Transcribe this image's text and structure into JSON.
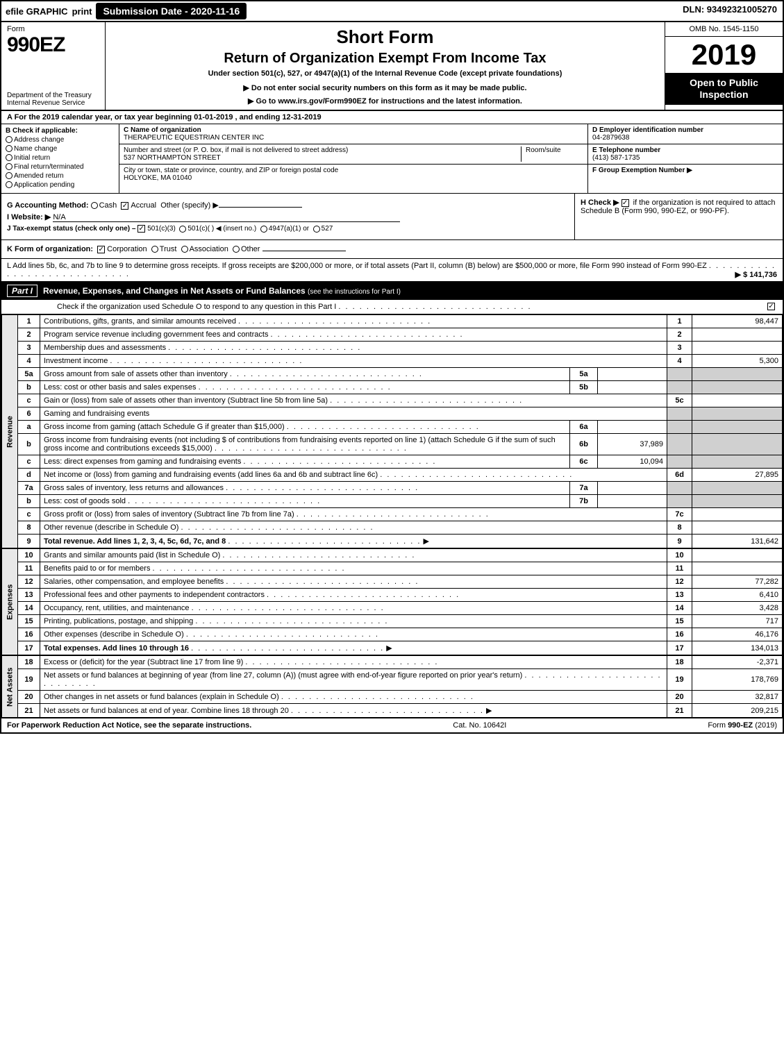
{
  "topbar": {
    "efile": "efile GRAPHIC",
    "print": "print",
    "submission_label": "Submission Date - 2020-11-16",
    "dln": "DLN: 93492321005270"
  },
  "header": {
    "form_word": "Form",
    "form_no": "990EZ",
    "dept": "Department of the Treasury",
    "irs": "Internal Revenue Service",
    "short": "Short Form",
    "title": "Return of Organization Exempt From Income Tax",
    "under": "Under section 501(c), 527, or 4947(a)(1) of the Internal Revenue Code (except private foundations)",
    "ssn_note": "▶ Do not enter social security numbers on this form as it may be made public.",
    "goto": "▶ Go to www.irs.gov/Form990EZ for instructions and the latest information.",
    "omb": "OMB No. 1545-1150",
    "year": "2019",
    "open": "Open to Public Inspection"
  },
  "lineA": {
    "text": "A For the 2019 calendar year, or tax year beginning 01-01-2019 , and ending 12-31-2019"
  },
  "entity": {
    "B_header": "B Check if applicable:",
    "B_opts": [
      "Address change",
      "Name change",
      "Initial return",
      "Final return/terminated",
      "Amended return",
      "Application pending"
    ],
    "C_label": "C Name of organization",
    "C_name": "THERAPEUTIC EQUESTRIAN CENTER INC",
    "addr_label": "Number and street (or P. O. box, if mail is not delivered to street address)",
    "room_label": "Room/suite",
    "addr": "537 NORTHAMPTON STREET",
    "city_label": "City or town, state or province, country, and ZIP or foreign postal code",
    "city": "HOLYOKE, MA  01040",
    "D_label": "D Employer identification number",
    "D_val": "04-2879638",
    "E_label": "E Telephone number",
    "E_val": "(413) 587-1735",
    "F_label": "F Group Exemption Number ▶"
  },
  "ghij": {
    "G": "G Accounting Method:",
    "G_cash": "Cash",
    "G_accr": "Accrual",
    "G_other": "Other (specify) ▶",
    "I": "I Website: ▶",
    "I_val": "N/A",
    "J": "J Tax-exempt status (check only one) –",
    "J_1": "501(c)(3)",
    "J_2": "501(c)( ) ◀ (insert no.)",
    "J_3": "4947(a)(1) or",
    "J_4": "527",
    "H": "H Check ▶",
    "H_txt": "if the organization is not required to attach Schedule B (Form 990, 990-EZ, or 990-PF)."
  },
  "K": {
    "label": "K Form of organization:",
    "opts": [
      "Corporation",
      "Trust",
      "Association",
      "Other"
    ]
  },
  "L": {
    "text": "L Add lines 5b, 6c, and 7b to line 9 to determine gross receipts. If gross receipts are $200,000 or more, or if total assets (Part II, column (B) below) are $500,000 or more, file Form 990 instead of Form 990-EZ",
    "val": "▶ $ 141,736"
  },
  "partI": {
    "num": "Part I",
    "title": "Revenue, Expenses, and Changes in Net Assets or Fund Balances",
    "sub": "(see the instructions for Part I)",
    "check": "Check if the organization used Schedule O to respond to any question in this Part I"
  },
  "sections": {
    "revenue": "Revenue",
    "expenses": "Expenses",
    "netassets": "Net Assets"
  },
  "lines": [
    {
      "n": "1",
      "d": "Contributions, gifts, grants, and similar amounts received",
      "ln": "1",
      "amt": "98,447"
    },
    {
      "n": "2",
      "d": "Program service revenue including government fees and contracts",
      "ln": "2",
      "amt": ""
    },
    {
      "n": "3",
      "d": "Membership dues and assessments",
      "ln": "3",
      "amt": ""
    },
    {
      "n": "4",
      "d": "Investment income",
      "ln": "4",
      "amt": "5,300"
    },
    {
      "n": "5a",
      "d": "Gross amount from sale of assets other than inventory",
      "sub": "5a",
      "subv": ""
    },
    {
      "n": "b",
      "d": "Less: cost or other basis and sales expenses",
      "sub": "5b",
      "subv": ""
    },
    {
      "n": "c",
      "d": "Gain or (loss) from sale of assets other than inventory (Subtract line 5b from line 5a)",
      "ln": "5c",
      "amt": ""
    },
    {
      "n": "6",
      "d": "Gaming and fundraising events"
    },
    {
      "n": "a",
      "d": "Gross income from gaming (attach Schedule G if greater than $15,000)",
      "sub": "6a",
      "subv": ""
    },
    {
      "n": "b",
      "d": "Gross income from fundraising events (not including $             of contributions from fundraising events reported on line 1) (attach Schedule G if the sum of such gross income and contributions exceeds $15,000)",
      "sub": "6b",
      "subv": "37,989"
    },
    {
      "n": "c",
      "d": "Less: direct expenses from gaming and fundraising events",
      "sub": "6c",
      "subv": "10,094"
    },
    {
      "n": "d",
      "d": "Net income or (loss) from gaming and fundraising events (add lines 6a and 6b and subtract line 6c)",
      "ln": "6d",
      "amt": "27,895"
    },
    {
      "n": "7a",
      "d": "Gross sales of inventory, less returns and allowances",
      "sub": "7a",
      "subv": ""
    },
    {
      "n": "b",
      "d": "Less: cost of goods sold",
      "sub": "7b",
      "subv": ""
    },
    {
      "n": "c",
      "d": "Gross profit or (loss) from sales of inventory (Subtract line 7b from line 7a)",
      "ln": "7c",
      "amt": ""
    },
    {
      "n": "8",
      "d": "Other revenue (describe in Schedule O)",
      "ln": "8",
      "amt": ""
    },
    {
      "n": "9",
      "d": "Total revenue. Add lines 1, 2, 3, 4, 5c, 6d, 7c, and 8",
      "ln": "9",
      "amt": "131,642",
      "bold": true,
      "arrow": true
    }
  ],
  "exp": [
    {
      "n": "10",
      "d": "Grants and similar amounts paid (list in Schedule O)",
      "ln": "10",
      "amt": ""
    },
    {
      "n": "11",
      "d": "Benefits paid to or for members",
      "ln": "11",
      "amt": ""
    },
    {
      "n": "12",
      "d": "Salaries, other compensation, and employee benefits",
      "ln": "12",
      "amt": "77,282"
    },
    {
      "n": "13",
      "d": "Professional fees and other payments to independent contractors",
      "ln": "13",
      "amt": "6,410"
    },
    {
      "n": "14",
      "d": "Occupancy, rent, utilities, and maintenance",
      "ln": "14",
      "amt": "3,428"
    },
    {
      "n": "15",
      "d": "Printing, publications, postage, and shipping",
      "ln": "15",
      "amt": "717"
    },
    {
      "n": "16",
      "d": "Other expenses (describe in Schedule O)",
      "ln": "16",
      "amt": "46,176"
    },
    {
      "n": "17",
      "d": "Total expenses. Add lines 10 through 16",
      "ln": "17",
      "amt": "134,013",
      "bold": true,
      "arrow": true
    }
  ],
  "net": [
    {
      "n": "18",
      "d": "Excess or (deficit) for the year (Subtract line 17 from line 9)",
      "ln": "18",
      "amt": "-2,371"
    },
    {
      "n": "19",
      "d": "Net assets or fund balances at beginning of year (from line 27, column (A)) (must agree with end-of-year figure reported on prior year's return)",
      "ln": "19",
      "amt": "178,769"
    },
    {
      "n": "20",
      "d": "Other changes in net assets or fund balances (explain in Schedule O)",
      "ln": "20",
      "amt": "32,817"
    },
    {
      "n": "21",
      "d": "Net assets or fund balances at end of year. Combine lines 18 through 20",
      "ln": "21",
      "amt": "209,215",
      "arrow": true
    }
  ],
  "footer": {
    "left": "For Paperwork Reduction Act Notice, see the separate instructions.",
    "mid": "Cat. No. 10642I",
    "right": "Form 990-EZ (2019)"
  },
  "colors": {
    "black": "#000000",
    "white": "#ffffff",
    "shade": "#d0d0d0",
    "lightshade": "#e8e8e8"
  }
}
